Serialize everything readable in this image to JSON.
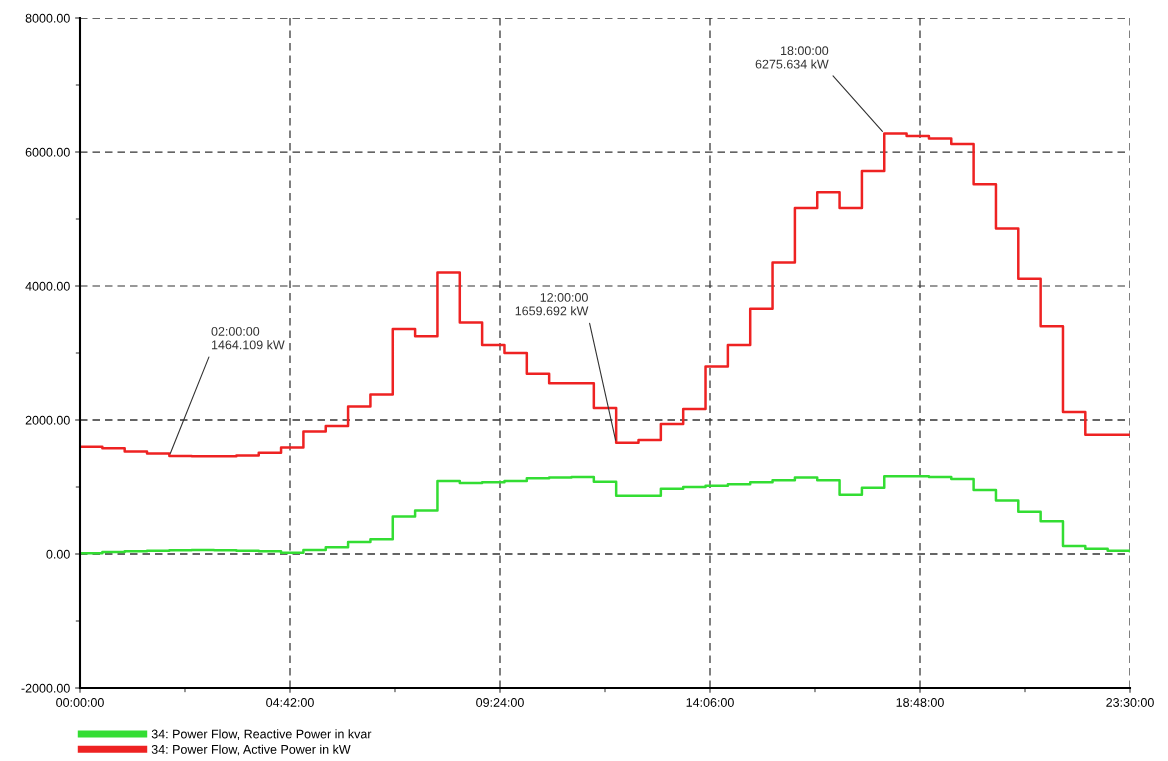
{
  "chart_data": {
    "type": "step",
    "x": [
      0,
      0.5,
      1,
      1.5,
      2,
      2.5,
      3,
      3.5,
      4,
      4.5,
      5,
      5.5,
      6,
      6.5,
      7,
      7.5,
      8,
      8.5,
      9,
      9.5,
      10,
      10.5,
      11,
      11.5,
      12,
      12.5,
      13,
      13.5,
      14,
      14.5,
      15,
      15.5,
      16,
      16.5,
      17,
      17.5,
      18,
      18.5,
      19,
      19.5,
      20,
      20.5,
      21,
      21.5,
      22,
      22.5,
      23,
      23.5
    ],
    "series": [
      {
        "name": "34: Power Flow, Reactive Power in kvar",
        "color": "#33dd33",
        "values": [
          10,
          30,
          40,
          50,
          55,
          60,
          55,
          50,
          40,
          20,
          60,
          100,
          180,
          220,
          560,
          650,
          1090,
          1060,
          1070,
          1090,
          1130,
          1140,
          1150,
          1080,
          870,
          870,
          975,
          1000,
          1020,
          1040,
          1070,
          1100,
          1140,
          1100,
          885,
          990,
          1160,
          1160,
          1150,
          1120,
          955,
          800,
          630,
          490,
          120,
          80,
          50,
          40
        ]
      },
      {
        "name": "34: Power Flow, Active Power in kW",
        "color": "#ee2222",
        "values": [
          1600,
          1580,
          1530,
          1500,
          1464.109,
          1460,
          1460,
          1470,
          1510,
          1590,
          1830,
          1910,
          2200,
          2380,
          3360,
          3250,
          4200,
          3455,
          3120,
          3000,
          2690,
          2550,
          2550,
          2180,
          1659.692,
          1700,
          1940,
          2165,
          2800,
          3120,
          3660,
          4350,
          5165,
          5400,
          5165,
          5715,
          6275.634,
          6240,
          6200,
          6120,
          5520,
          4860,
          4110,
          3400,
          2120,
          1780,
          1780,
          1780
        ]
      }
    ],
    "xlim": [
      0,
      23.5
    ],
    "xticks": [
      {
        "value": 0,
        "label": "00:00:00"
      },
      {
        "value": 2.35,
        "label": null
      },
      {
        "value": 4.7,
        "label": "04:42:00"
      },
      {
        "value": 7.05,
        "label": null
      },
      {
        "value": 9.4,
        "label": "09:24:00"
      },
      {
        "value": 11.75,
        "label": null
      },
      {
        "value": 14.1,
        "label": "14:06:00"
      },
      {
        "value": 16.45,
        "label": null
      },
      {
        "value": 18.8,
        "label": "18:48:00"
      },
      {
        "value": 21.15,
        "label": null
      },
      {
        "value": 23.5,
        "label": "23:30:00"
      }
    ],
    "ylim": [
      -2000,
      8000
    ],
    "yticks": [
      {
        "value": -2000,
        "label": "-2000.00"
      },
      {
        "value": -1000,
        "label": null
      },
      {
        "value": 0,
        "label": "0.00"
      },
      {
        "value": 1000,
        "label": null
      },
      {
        "value": 2000,
        "label": "2000.00"
      },
      {
        "value": 3000,
        "label": null
      },
      {
        "value": 4000,
        "label": "4000.00"
      },
      {
        "value": 5000,
        "label": null
      },
      {
        "value": 6000,
        "label": "6000.00"
      },
      {
        "value": 7000,
        "label": null
      },
      {
        "value": 8000,
        "label": "8000.00"
      }
    ],
    "grid": true,
    "line_style": "solid",
    "legend": "bottom left",
    "annotations": [
      {
        "text": "02:00:00\n1464.109 kW",
        "x": 2,
        "y": 1464.109
      },
      {
        "text": "12:00:00\n1659.692 kW",
        "x": 12,
        "y": 1659.692
      },
      {
        "text": "18:00:00\n6275.634 kW",
        "x": 18,
        "y": 6275.634
      }
    ]
  }
}
